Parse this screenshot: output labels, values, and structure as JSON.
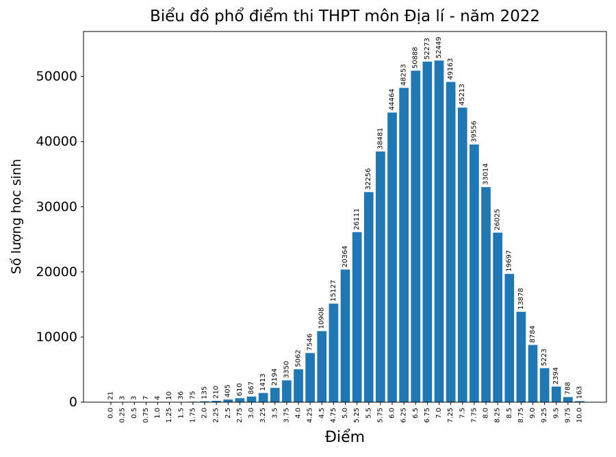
{
  "chart": {
    "title": "Biểu đồ phổ điểm thi THPT môn Địa lí - năm 2022",
    "xlabel": "Điểm",
    "ylabel": "Số lượng học sinh"
  },
  "chart_data": {
    "type": "bar",
    "title": "Biểu đồ phổ điểm thi THPT môn Địa lí - năm 2022",
    "xlabel": "Điểm",
    "ylabel": "Số lượng học sinh",
    "bar_color": "#1f77b4",
    "categories": [
      "0.0",
      "0.25",
      "0.5",
      "0.75",
      "1.0",
      "1.25",
      "1.5",
      "1.75",
      "2.0",
      "2.25",
      "2.5",
      "2.75",
      "3.0",
      "3.25",
      "3.5",
      "3.75",
      "4.0",
      "4.25",
      "4.5",
      "4.75",
      "5.0",
      "5.25",
      "5.5",
      "5.75",
      "6.0",
      "6.25",
      "6.5",
      "6.75",
      "7.0",
      "7.25",
      "7.5",
      "7.75",
      "8.0",
      "8.25",
      "8.5",
      "8.75",
      "9.0",
      "9.25",
      "9.5",
      "9.75",
      "10.0"
    ],
    "values": [
      21,
      3,
      3,
      7,
      4,
      10,
      36,
      75,
      135,
      210,
      405,
      610,
      867,
      1413,
      2194,
      3350,
      5062,
      7546,
      10908,
      15127,
      20364,
      26111,
      32256,
      38481,
      44464,
      48253,
      50888,
      52273,
      52449,
      49163,
      45213,
      39556,
      33014,
      26025,
      19697,
      13878,
      8784,
      5223,
      2394,
      788,
      163
    ],
    "yticks": [
      0,
      10000,
      20000,
      30000,
      40000,
      50000
    ],
    "ylim": [
      0,
      56900
    ],
    "value_labels_rotation": 90,
    "xtick_rotation": 90,
    "grid": false,
    "legend": null
  }
}
